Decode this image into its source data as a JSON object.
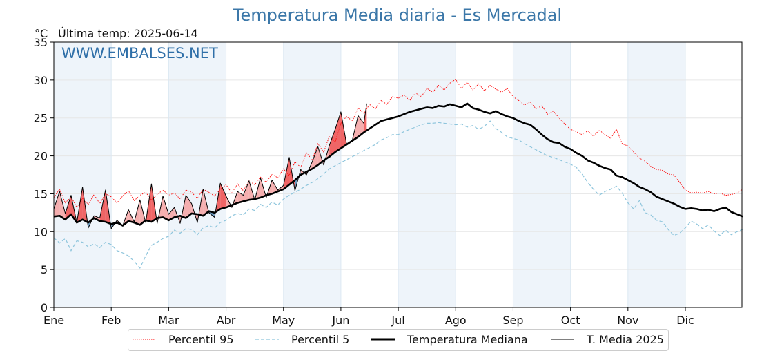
{
  "title": "Temperatura Media diaria - Es Mercadal",
  "unit_label": "°C",
  "last_temp_label": "Última temp: 2025-06-14",
  "watermark": "WWW.EMBALSES.NET",
  "chart_data": {
    "type": "line",
    "title": "Temperatura Media diaria - Es Mercadal",
    "ylabel": "°C",
    "ylim": [
      0,
      35
    ],
    "y_ticks": [
      0,
      5,
      10,
      15,
      20,
      25,
      30,
      35
    ],
    "x_ticks": [
      "Ene",
      "Feb",
      "Mar",
      "Abr",
      "May",
      "Jun",
      "Jul",
      "Ago",
      "Sep",
      "Oct",
      "Nov",
      "Dic"
    ],
    "legend_position": "bottom",
    "grid": true,
    "colors": {
      "p95": "#ff0000",
      "p5": "#8ec5dc",
      "median": "#000000",
      "year": "#000000",
      "above_fill": "#f4a6a6",
      "above_fill_strong": "#ee5555",
      "below_fill": "#5e93bd",
      "month_band": "#eef4fa"
    },
    "x_unit": "month",
    "series": [
      {
        "name": "Percentil 95",
        "style": "dotted",
        "x": [
          0,
          0.1,
          0.2,
          0.3,
          0.4,
          0.5,
          0.6,
          0.7,
          0.8,
          0.9,
          1,
          1.1,
          1.2,
          1.3,
          1.4,
          1.5,
          1.6,
          1.7,
          1.8,
          1.9,
          2,
          2.1,
          2.2,
          2.3,
          2.4,
          2.5,
          2.6,
          2.7,
          2.8,
          2.9,
          3,
          3.1,
          3.2,
          3.3,
          3.4,
          3.5,
          3.6,
          3.7,
          3.8,
          3.9,
          4,
          4.1,
          4.2,
          4.3,
          4.4,
          4.5,
          4.6,
          4.7,
          4.8,
          4.9,
          5,
          5.1,
          5.2,
          5.3,
          5.4,
          5.5,
          5.6,
          5.7,
          5.8,
          5.9,
          6,
          6.1,
          6.2,
          6.3,
          6.4,
          6.5,
          6.6,
          6.7,
          6.8,
          6.9,
          7,
          7.1,
          7.2,
          7.3,
          7.4,
          7.5,
          7.6,
          7.7,
          7.8,
          7.9,
          8,
          8.1,
          8.2,
          8.3,
          8.4,
          8.5,
          8.6,
          8.7,
          8.8,
          8.9,
          9,
          9.1,
          9.2,
          9.3,
          9.4,
          9.5,
          9.6,
          9.7,
          9.8,
          9.9,
          10,
          10.1,
          10.2,
          10.3,
          10.4,
          10.5,
          10.6,
          10.7,
          10.8,
          10.9,
          11,
          11.1,
          11.2,
          11.3,
          11.4,
          11.5,
          11.6,
          11.7,
          11.8,
          11.9,
          12
        ],
        "values": [
          14.5,
          15.6,
          13.8,
          14.6,
          13.2,
          14.4,
          13.6,
          14.9,
          13.7,
          15,
          14.6,
          13.8,
          14.7,
          15.4,
          14.1,
          14.8,
          15.2,
          14.2,
          14.9,
          15.5,
          14.8,
          15.1,
          14.3,
          15.5,
          15.2,
          14.4,
          15.6,
          15.2,
          14.7,
          15.6,
          16.2,
          15.1,
          16.3,
          15.4,
          16.7,
          16.2,
          17.2,
          16.5,
          17.6,
          17.1,
          18.3,
          17.4,
          19.2,
          18.5,
          20.4,
          19.5,
          21.6,
          20.5,
          22.6,
          21.8,
          24.3,
          25.2,
          24.6,
          26.3,
          25.6,
          26.8,
          26.2,
          27.3,
          26.8,
          27.8,
          27.6,
          28,
          27.3,
          28.3,
          27.8,
          28.9,
          28.4,
          29.3,
          28.7,
          29.6,
          30.1,
          28.9,
          29.7,
          28.7,
          29.5,
          28.6,
          29.3,
          28.8,
          28.4,
          28.9,
          27.8,
          27.3,
          26.7,
          27.1,
          26.2,
          26.6,
          25.5,
          25.9,
          25,
          24.2,
          23.5,
          23.2,
          22.8,
          23.3,
          22.6,
          23.4,
          22.8,
          22.3,
          23.5,
          21.6,
          21.3,
          20.5,
          19.7,
          19.3,
          18.6,
          18.2,
          18.1,
          17.6,
          17.5,
          16.5,
          15.5,
          15.1,
          15.2,
          15.1,
          15.3,
          15,
          15.1,
          14.8,
          14.9,
          15.1,
          15.6
        ]
      },
      {
        "name": "Percentil 5",
        "style": "dashed",
        "x": [
          0,
          0.1,
          0.2,
          0.3,
          0.4,
          0.5,
          0.6,
          0.7,
          0.8,
          0.9,
          1,
          1.1,
          1.2,
          1.3,
          1.4,
          1.5,
          1.6,
          1.7,
          1.8,
          1.9,
          2,
          2.1,
          2.2,
          2.3,
          2.4,
          2.5,
          2.6,
          2.7,
          2.8,
          2.9,
          3,
          3.1,
          3.2,
          3.3,
          3.4,
          3.5,
          3.6,
          3.7,
          3.8,
          3.9,
          4,
          4.1,
          4.2,
          4.3,
          4.4,
          4.5,
          4.6,
          4.7,
          4.8,
          4.9,
          5,
          5.1,
          5.2,
          5.3,
          5.4,
          5.5,
          5.6,
          5.7,
          5.8,
          5.9,
          6,
          6.1,
          6.2,
          6.3,
          6.4,
          6.5,
          6.6,
          6.7,
          6.8,
          6.9,
          7,
          7.1,
          7.2,
          7.3,
          7.4,
          7.5,
          7.6,
          7.7,
          7.8,
          7.9,
          8,
          8.1,
          8.2,
          8.3,
          8.4,
          8.5,
          8.6,
          8.7,
          8.8,
          8.9,
          9,
          9.1,
          9.2,
          9.3,
          9.4,
          9.5,
          9.6,
          9.7,
          9.8,
          9.9,
          10,
          10.1,
          10.2,
          10.3,
          10.4,
          10.5,
          10.6,
          10.7,
          10.8,
          10.9,
          11,
          11.1,
          11.2,
          11.3,
          11.4,
          11.5,
          11.6,
          11.7,
          11.8,
          11.9,
          12
        ],
        "values": [
          9.2,
          8.5,
          9.1,
          7.5,
          8.8,
          8.6,
          8,
          8.4,
          7.9,
          8.6,
          8.3,
          7.5,
          7.2,
          6.8,
          6.1,
          5.2,
          6.8,
          8.2,
          8.6,
          9.1,
          9.4,
          10.2,
          9.8,
          10.4,
          10.3,
          9.6,
          10.5,
          10.8,
          10.5,
          11.2,
          11.5,
          12.1,
          12.4,
          12.2,
          13,
          12.8,
          13.6,
          13.2,
          13.9,
          13.5,
          14.3,
          14.8,
          15.2,
          15.6,
          16.1,
          16.5,
          17,
          17.6,
          18.3,
          18.7,
          19.1,
          19.5,
          19.9,
          20.3,
          20.7,
          21.1,
          21.5,
          22.1,
          22.4,
          22.8,
          22.8,
          23.2,
          23.5,
          23.8,
          24.1,
          24.3,
          24.3,
          24.4,
          24.3,
          24.2,
          24.1,
          24.2,
          23.8,
          24,
          23.5,
          23.9,
          24.6,
          23.6,
          23.1,
          22.5,
          22.3,
          22.1,
          21.6,
          21.2,
          20.8,
          20.4,
          20,
          19.8,
          19.5,
          19.2,
          18.9,
          18.5,
          17.6,
          16.5,
          15.6,
          14.8,
          15.3,
          15.6,
          16,
          15.1,
          13.8,
          13,
          14.1,
          12.5,
          12.2,
          11.5,
          11.3,
          10.3,
          9.5,
          9.8,
          10.5,
          11.4,
          11,
          10.4,
          10.9,
          10.1,
          9.5,
          10.2,
          9.6,
          10,
          10.3
        ]
      },
      {
        "name": "Temperatura Mediana",
        "style": "solid-thick",
        "x": [
          0,
          0.1,
          0.2,
          0.3,
          0.4,
          0.5,
          0.6,
          0.7,
          0.8,
          0.9,
          1,
          1.1,
          1.2,
          1.3,
          1.4,
          1.5,
          1.6,
          1.7,
          1.8,
          1.9,
          2,
          2.1,
          2.2,
          2.3,
          2.4,
          2.5,
          2.6,
          2.7,
          2.8,
          2.9,
          3,
          3.1,
          3.2,
          3.3,
          3.4,
          3.5,
          3.6,
          3.7,
          3.8,
          3.9,
          4,
          4.1,
          4.2,
          4.3,
          4.4,
          4.5,
          4.6,
          4.7,
          4.8,
          4.9,
          5,
          5.1,
          5.2,
          5.3,
          5.4,
          5.5,
          5.6,
          5.7,
          5.8,
          5.9,
          6,
          6.1,
          6.2,
          6.3,
          6.4,
          6.5,
          6.6,
          6.7,
          6.8,
          6.9,
          7,
          7.1,
          7.2,
          7.3,
          7.4,
          7.5,
          7.6,
          7.7,
          7.8,
          7.9,
          8,
          8.1,
          8.2,
          8.3,
          8.4,
          8.5,
          8.6,
          8.7,
          8.8,
          8.9,
          9,
          9.1,
          9.2,
          9.3,
          9.4,
          9.5,
          9.6,
          9.7,
          9.8,
          9.9,
          10,
          10.1,
          10.2,
          10.3,
          10.4,
          10.5,
          10.6,
          10.7,
          10.8,
          10.9,
          11,
          11.1,
          11.2,
          11.3,
          11.4,
          11.5,
          11.6,
          11.7,
          11.8,
          11.9,
          12
        ],
        "values": [
          12,
          12.1,
          11.6,
          12.3,
          11.2,
          11.6,
          11.2,
          11.8,
          11.4,
          11.3,
          11,
          11.2,
          10.8,
          11.4,
          11.2,
          10.9,
          11.5,
          11.3,
          11.8,
          11.9,
          11.5,
          11.9,
          12.1,
          11.8,
          12.4,
          12.3,
          12.1,
          12.7,
          12.5,
          13,
          13.2,
          13.5,
          13.8,
          14,
          14.2,
          14.3,
          14.5,
          14.8,
          15,
          15.3,
          15.6,
          16.2,
          16.8,
          17.5,
          17.9,
          18.3,
          18.8,
          19.4,
          19.9,
          20.5,
          21,
          21.5,
          22,
          22.5,
          23.1,
          23.6,
          24.1,
          24.6,
          24.8,
          25,
          25.2,
          25.5,
          25.8,
          26,
          26.2,
          26.4,
          26.3,
          26.6,
          26.5,
          26.8,
          26.6,
          26.4,
          26.9,
          26.3,
          26.1,
          25.8,
          25.6,
          25.9,
          25.5,
          25.2,
          25,
          24.6,
          24.3,
          24.1,
          23.5,
          22.8,
          22.2,
          21.8,
          21.7,
          21.2,
          20.9,
          20.4,
          20,
          19.4,
          19.1,
          18.7,
          18.4,
          18.2,
          17.4,
          17.2,
          16.8,
          16.4,
          15.9,
          15.6,
          15.2,
          14.6,
          14.3,
          14,
          13.7,
          13.3,
          13,
          13.1,
          13,
          12.8,
          12.9,
          12.7,
          13,
          13.2,
          12.6,
          12.3,
          12
        ]
      },
      {
        "name": "T. Media 2025",
        "style": "solid-thin",
        "x": [
          0,
          0.1,
          0.2,
          0.3,
          0.4,
          0.5,
          0.6,
          0.7,
          0.8,
          0.9,
          1,
          1.1,
          1.2,
          1.3,
          1.4,
          1.5,
          1.6,
          1.7,
          1.8,
          1.9,
          2,
          2.1,
          2.2,
          2.3,
          2.4,
          2.5,
          2.6,
          2.7,
          2.8,
          2.9,
          3,
          3.1,
          3.2,
          3.3,
          3.4,
          3.5,
          3.6,
          3.7,
          3.8,
          3.9,
          4,
          4.1,
          4.2,
          4.3,
          4.4,
          4.5,
          4.6,
          4.7,
          4.8,
          4.9,
          5,
          5.1,
          5.2,
          5.3,
          5.4,
          5.45
        ],
        "values": [
          13,
          15.3,
          12.4,
          14.8,
          11.2,
          15.9,
          10.5,
          12.1,
          11.8,
          15.5,
          10.4,
          11.5,
          10.8,
          12.9,
          11.3,
          14.2,
          11.2,
          16.3,
          11.1,
          14.7,
          12.3,
          13.2,
          11.1,
          14.8,
          13.7,
          11.2,
          15.6,
          12.5,
          11.9,
          16.4,
          14.7,
          13.2,
          15.3,
          14.8,
          16.7,
          14.2,
          17.1,
          14.5,
          16.8,
          15.5,
          16.1,
          19.8,
          15.4,
          18.2,
          17.5,
          19.2,
          21.2,
          18.8,
          21.4,
          23.5,
          25.8,
          21.5,
          22.1,
          25.3,
          24.3,
          26.9
        ]
      }
    ]
  },
  "legend": {
    "items": [
      {
        "label": "Percentil 95"
      },
      {
        "label": "Percentil 5"
      },
      {
        "label": "Temperatura Mediana"
      },
      {
        "label": "T. Media 2025"
      }
    ]
  }
}
